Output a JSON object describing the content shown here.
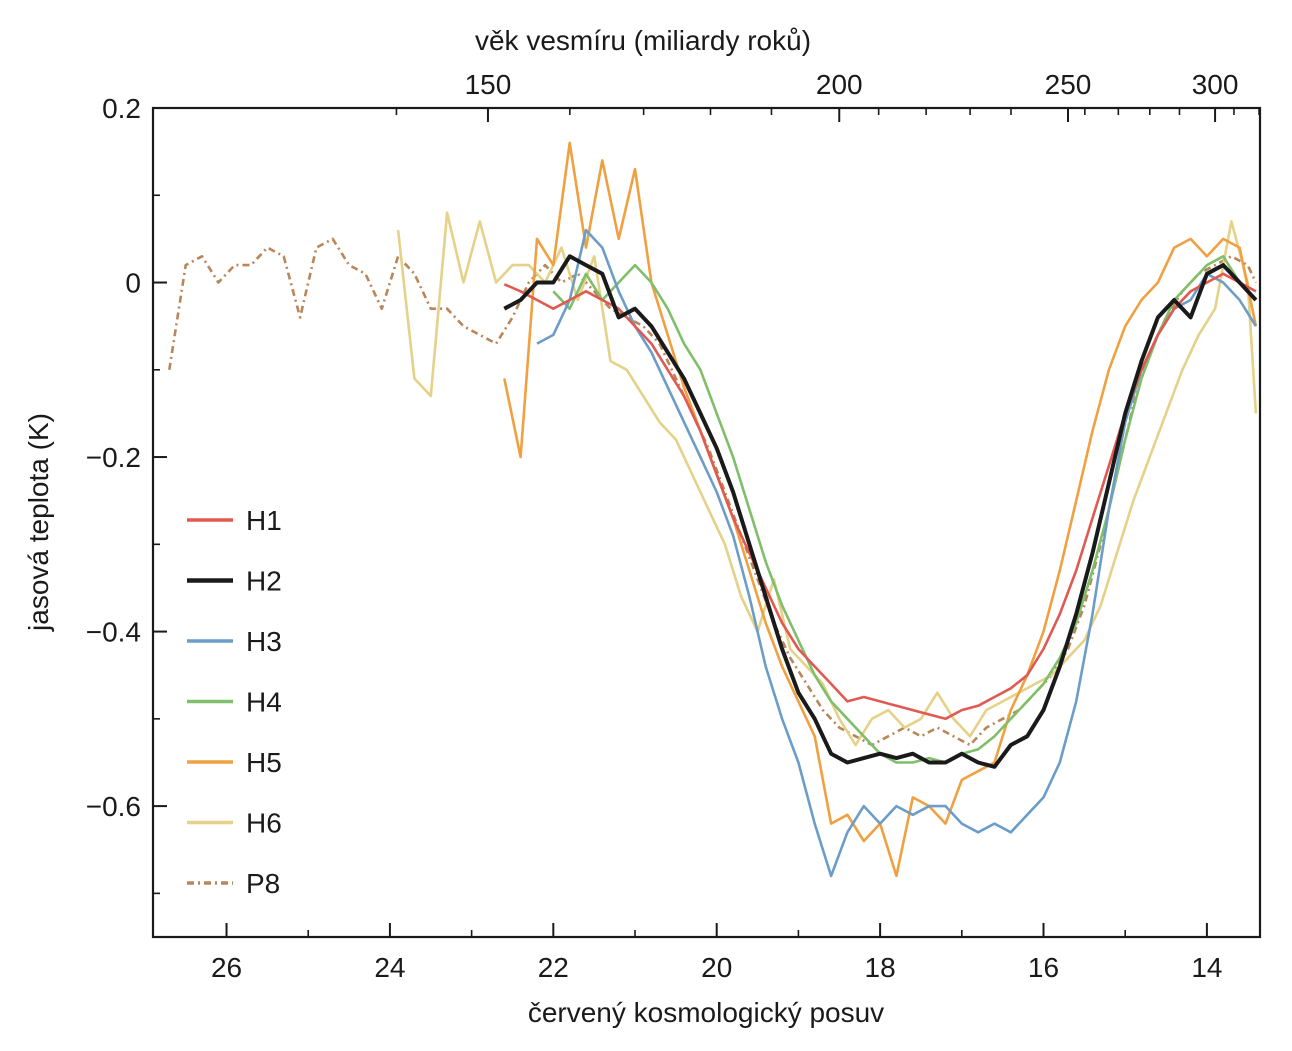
{
  "chart_data": {
    "type": "line",
    "title": "",
    "xlabel": "červený kosmologický posuv",
    "ylabel": "jasová teplota  (K)",
    "top_axis_label": "věk vesmíru (miliardy roků)",
    "xlim": [
      26.9,
      13.35
    ],
    "ylim": [
      -0.75,
      0.2
    ],
    "x_ticks": [
      "26",
      "24",
      "22",
      "20",
      "18",
      "16",
      "14"
    ],
    "x_tick_values": [
      26,
      24,
      22,
      20,
      18,
      16,
      14
    ],
    "y_ticks": [
      "0.2",
      "0",
      "−0.2",
      "−0.4",
      "−0.6"
    ],
    "y_tick_values": [
      0.2,
      0,
      -0.2,
      -0.4,
      -0.6
    ],
    "top_ticks": [
      "150",
      "200",
      "250",
      "300"
    ],
    "top_tick_redshift": [
      22.8,
      18.5,
      15.7,
      13.9
    ],
    "grid": false,
    "legend_position": "left",
    "series": [
      {
        "name": "H1",
        "color": "#e05a52",
        "dash": "",
        "x": [
          22.6,
          22.4,
          22.2,
          22.0,
          21.8,
          21.6,
          21.4,
          21.2,
          21.0,
          20.8,
          20.6,
          20.4,
          20.2,
          20.0,
          19.8,
          19.6,
          19.4,
          19.2,
          19.0,
          18.8,
          18.6,
          18.4,
          18.2,
          18.0,
          17.8,
          17.6,
          17.4,
          17.2,
          17.0,
          16.8,
          16.6,
          16.4,
          16.2,
          16.0,
          15.8,
          15.6,
          15.4,
          15.2,
          15.0,
          14.8,
          14.6,
          14.4,
          14.2,
          14.0,
          13.8,
          13.6,
          13.4
        ],
        "y": [
          -0.002,
          -0.01,
          -0.02,
          -0.03,
          -0.02,
          -0.01,
          -0.02,
          -0.03,
          -0.05,
          -0.07,
          -0.1,
          -0.13,
          -0.17,
          -0.22,
          -0.27,
          -0.31,
          -0.35,
          -0.39,
          -0.42,
          -0.44,
          -0.46,
          -0.48,
          -0.475,
          -0.48,
          -0.485,
          -0.49,
          -0.495,
          -0.5,
          -0.49,
          -0.485,
          -0.475,
          -0.465,
          -0.45,
          -0.42,
          -0.38,
          -0.33,
          -0.27,
          -0.21,
          -0.15,
          -0.1,
          -0.06,
          -0.03,
          -0.01,
          0.0,
          0.01,
          0.0,
          -0.01
        ]
      },
      {
        "name": "H2",
        "color": "#1a1a1a",
        "dash": "",
        "x": [
          22.6,
          22.4,
          22.2,
          22.0,
          21.8,
          21.6,
          21.4,
          21.2,
          21.0,
          20.8,
          20.6,
          20.4,
          20.2,
          20.0,
          19.8,
          19.6,
          19.4,
          19.2,
          19.0,
          18.8,
          18.6,
          18.4,
          18.2,
          18.0,
          17.8,
          17.6,
          17.4,
          17.2,
          17.0,
          16.8,
          16.6,
          16.4,
          16.2,
          16.0,
          15.8,
          15.6,
          15.4,
          15.2,
          15.0,
          14.8,
          14.6,
          14.4,
          14.2,
          14.0,
          13.8,
          13.6,
          13.4
        ],
        "y": [
          -0.03,
          -0.02,
          0.0,
          0.0,
          0.03,
          0.02,
          0.01,
          -0.04,
          -0.03,
          -0.05,
          -0.08,
          -0.11,
          -0.15,
          -0.19,
          -0.24,
          -0.3,
          -0.36,
          -0.42,
          -0.47,
          -0.5,
          -0.54,
          -0.55,
          -0.545,
          -0.54,
          -0.545,
          -0.54,
          -0.55,
          -0.55,
          -0.54,
          -0.55,
          -0.555,
          -0.53,
          -0.52,
          -0.49,
          -0.44,
          -0.38,
          -0.31,
          -0.23,
          -0.15,
          -0.09,
          -0.04,
          -0.02,
          -0.04,
          0.01,
          0.02,
          0.0,
          -0.02
        ]
      },
      {
        "name": "H3",
        "color": "#6b9dc8",
        "dash": "",
        "x": [
          22.2,
          22.0,
          21.8,
          21.6,
          21.4,
          21.2,
          21.0,
          20.8,
          20.6,
          20.4,
          20.2,
          20.0,
          19.8,
          19.6,
          19.4,
          19.2,
          19.0,
          18.8,
          18.6,
          18.4,
          18.2,
          18.0,
          17.8,
          17.6,
          17.4,
          17.2,
          17.0,
          16.8,
          16.6,
          16.4,
          16.2,
          16.0,
          15.8,
          15.6,
          15.4,
          15.2,
          15.0,
          14.8,
          14.6,
          14.4,
          14.2,
          14.0,
          13.8,
          13.6,
          13.4
        ],
        "y": [
          -0.07,
          -0.06,
          -0.02,
          0.06,
          0.04,
          -0.01,
          -0.05,
          -0.08,
          -0.12,
          -0.16,
          -0.2,
          -0.24,
          -0.29,
          -0.36,
          -0.44,
          -0.5,
          -0.55,
          -0.62,
          -0.68,
          -0.63,
          -0.6,
          -0.62,
          -0.6,
          -0.61,
          -0.6,
          -0.6,
          -0.62,
          -0.63,
          -0.62,
          -0.63,
          -0.61,
          -0.59,
          -0.55,
          -0.48,
          -0.38,
          -0.26,
          -0.16,
          -0.1,
          -0.06,
          -0.03,
          -0.02,
          0.01,
          0.0,
          -0.02,
          -0.05
        ]
      },
      {
        "name": "H4",
        "color": "#7fbf6a",
        "dash": "",
        "x": [
          22.0,
          21.8,
          21.6,
          21.4,
          21.2,
          21.0,
          20.8,
          20.6,
          20.4,
          20.2,
          20.0,
          19.8,
          19.6,
          19.4,
          19.2,
          19.0,
          18.8,
          18.6,
          18.4,
          18.2,
          18.0,
          17.8,
          17.6,
          17.4,
          17.2,
          17.0,
          16.8,
          16.6,
          16.4,
          16.2,
          16.0,
          15.8,
          15.6,
          15.4,
          15.2,
          15.0,
          14.8,
          14.6,
          14.4,
          14.2,
          14.0,
          13.8,
          13.6,
          13.4
        ],
        "y": [
          -0.01,
          -0.03,
          0.01,
          -0.02,
          0.0,
          0.02,
          0.0,
          -0.03,
          -0.07,
          -0.1,
          -0.15,
          -0.2,
          -0.26,
          -0.32,
          -0.37,
          -0.41,
          -0.45,
          -0.48,
          -0.5,
          -0.52,
          -0.54,
          -0.55,
          -0.55,
          -0.545,
          -0.55,
          -0.54,
          -0.535,
          -0.52,
          -0.5,
          -0.48,
          -0.46,
          -0.43,
          -0.39,
          -0.33,
          -0.26,
          -0.18,
          -0.11,
          -0.06,
          -0.02,
          0.0,
          0.02,
          0.03,
          0.0,
          -0.02
        ]
      },
      {
        "name": "H5",
        "color": "#f0a040",
        "dash": "",
        "x": [
          22.6,
          22.4,
          22.2,
          22.0,
          21.8,
          21.6,
          21.4,
          21.2,
          21.0,
          20.8,
          20.6,
          20.4,
          20.2,
          20.0,
          19.8,
          19.6,
          19.4,
          19.2,
          19.0,
          18.8,
          18.6,
          18.4,
          18.2,
          18.0,
          17.8,
          17.6,
          17.4,
          17.2,
          17.0,
          16.8,
          16.6,
          16.4,
          16.2,
          16.0,
          15.8,
          15.6,
          15.4,
          15.2,
          15.0,
          14.8,
          14.6,
          14.4,
          14.2,
          14.0,
          13.8,
          13.6,
          13.4
        ],
        "y": [
          -0.11,
          -0.2,
          0.05,
          0.02,
          0.16,
          0.04,
          0.14,
          0.05,
          0.13,
          0.0,
          -0.06,
          -0.12,
          -0.17,
          -0.22,
          -0.27,
          -0.33,
          -0.39,
          -0.44,
          -0.48,
          -0.52,
          -0.62,
          -0.61,
          -0.64,
          -0.62,
          -0.68,
          -0.59,
          -0.6,
          -0.62,
          -0.57,
          -0.56,
          -0.55,
          -0.49,
          -0.45,
          -0.4,
          -0.33,
          -0.25,
          -0.17,
          -0.1,
          -0.05,
          -0.02,
          0.0,
          0.04,
          0.05,
          0.03,
          0.05,
          0.04,
          -0.05
        ]
      },
      {
        "name": "H6",
        "color": "#e5d188",
        "dash": "",
        "x": [
          23.9,
          23.7,
          23.5,
          23.3,
          23.1,
          22.9,
          22.7,
          22.5,
          22.3,
          22.1,
          21.9,
          21.7,
          21.5,
          21.3,
          21.1,
          20.9,
          20.7,
          20.5,
          20.3,
          20.1,
          19.9,
          19.7,
          19.5,
          19.3,
          19.1,
          18.9,
          18.7,
          18.5,
          18.3,
          18.1,
          17.9,
          17.7,
          17.5,
          17.3,
          17.1,
          16.9,
          16.7,
          16.5,
          16.3,
          16.1,
          15.9,
          15.7,
          15.5,
          15.3,
          15.1,
          14.9,
          14.7,
          14.5,
          14.3,
          14.1,
          13.9,
          13.7,
          13.5,
          13.4
        ],
        "y": [
          0.06,
          -0.11,
          -0.13,
          0.08,
          0.0,
          0.07,
          0.0,
          0.02,
          0.02,
          0.0,
          0.04,
          -0.02,
          0.03,
          -0.09,
          -0.1,
          -0.13,
          -0.16,
          -0.18,
          -0.22,
          -0.26,
          -0.3,
          -0.36,
          -0.4,
          -0.34,
          -0.42,
          -0.44,
          -0.46,
          -0.5,
          -0.53,
          -0.5,
          -0.49,
          -0.51,
          -0.5,
          -0.47,
          -0.5,
          -0.52,
          -0.49,
          -0.48,
          -0.47,
          -0.46,
          -0.45,
          -0.43,
          -0.41,
          -0.37,
          -0.31,
          -0.25,
          -0.2,
          -0.15,
          -0.1,
          -0.06,
          -0.03,
          0.07,
          0.0,
          -0.15
        ]
      },
      {
        "name": "P8",
        "color": "#b88658",
        "dash": "7,4,2,4",
        "x": [
          26.7,
          26.5,
          26.3,
          26.1,
          25.9,
          25.7,
          25.5,
          25.3,
          25.1,
          24.9,
          24.7,
          24.5,
          24.3,
          24.1,
          23.9,
          23.7,
          23.5,
          23.3,
          23.1,
          22.9,
          22.7,
          22.5,
          22.3,
          22.1,
          21.9,
          21.7,
          21.5,
          21.3,
          21.1,
          20.9,
          20.7,
          20.5,
          20.3,
          20.1,
          19.9,
          19.7,
          19.5,
          19.3,
          19.1,
          18.9,
          18.7,
          18.5,
          18.3,
          18.1,
          17.9,
          17.7,
          17.5,
          17.3,
          17.1,
          16.9,
          16.7,
          16.5,
          16.3,
          16.1,
          15.9,
          15.7,
          15.5,
          15.3,
          15.1,
          14.9,
          14.7,
          14.5,
          14.3,
          14.1,
          13.9,
          13.7,
          13.5,
          13.4
        ],
        "y": [
          -0.1,
          0.02,
          0.03,
          0.0,
          0.02,
          0.02,
          0.04,
          0.03,
          -0.04,
          0.04,
          0.05,
          0.02,
          0.01,
          -0.03,
          0.03,
          0.01,
          -0.03,
          -0.03,
          -0.05,
          -0.06,
          -0.07,
          -0.04,
          0.0,
          0.02,
          0.0,
          0.01,
          -0.01,
          -0.03,
          -0.04,
          -0.05,
          -0.07,
          -0.11,
          -0.15,
          -0.19,
          -0.24,
          -0.29,
          -0.34,
          -0.39,
          -0.43,
          -0.46,
          -0.49,
          -0.51,
          -0.52,
          -0.53,
          -0.52,
          -0.51,
          -0.52,
          -0.51,
          -0.52,
          -0.53,
          -0.51,
          -0.5,
          -0.49,
          -0.47,
          -0.45,
          -0.42,
          -0.37,
          -0.3,
          -0.22,
          -0.14,
          -0.08,
          -0.04,
          -0.01,
          0.01,
          0.02,
          0.03,
          0.02,
          0.0
        ]
      }
    ]
  }
}
